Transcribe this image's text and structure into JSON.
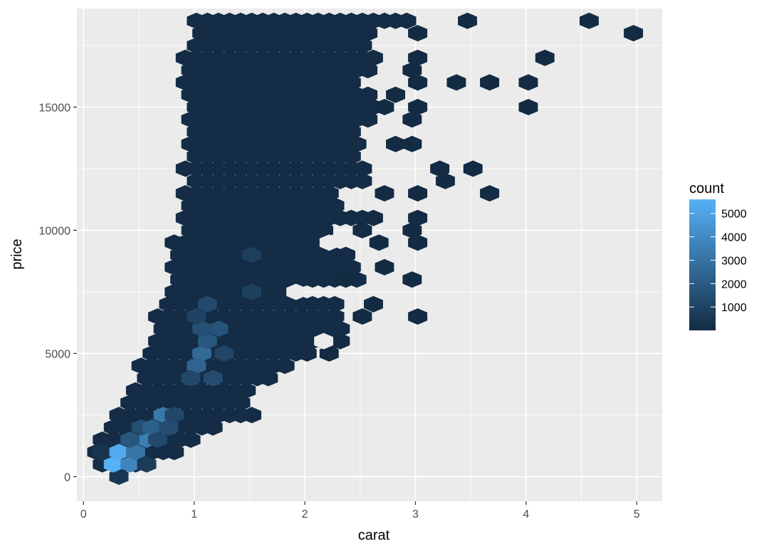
{
  "chart_data": {
    "type": "hexbin",
    "xlabel": "carat",
    "ylabel": "price",
    "xlim": [
      -0.06,
      5.23
    ],
    "ylim": [
      -1000,
      19000
    ],
    "x_ticks": [
      0,
      1,
      2,
      3,
      4,
      5
    ],
    "x_tick_labels": [
      "0",
      "1",
      "2",
      "3",
      "4",
      "5"
    ],
    "y_ticks": [
      0,
      5000,
      10000,
      15000
    ],
    "y_tick_labels": [
      "0",
      "5000",
      "10000",
      "15000"
    ],
    "grid": true,
    "legend": {
      "title": "count",
      "placement": "right",
      "min": 1,
      "max": 5600,
      "breaks": [
        1000,
        2000,
        3000,
        4000,
        5000
      ],
      "break_labels": [
        "1000",
        "2000",
        "3000",
        "4000",
        "5000"
      ]
    },
    "colors": {
      "low": "#132b43",
      "high": "#56b1f7",
      "panel": "#ebebeb",
      "grid_major": "#ffffff"
    },
    "bins": [
      {
        "x": 0.32,
        "y": 0,
        "count": 500
      },
      {
        "x": 0.17,
        "y": 1000,
        "count": 400
      },
      {
        "x": 0.27,
        "y": 500,
        "count": 5600
      },
      {
        "x": 0.32,
        "y": 1000,
        "count": 5300
      },
      {
        "x": 0.42,
        "y": 500,
        "count": 3800
      },
      {
        "x": 0.47,
        "y": 1000,
        "count": 3100
      },
      {
        "x": 0.57,
        "y": 1500,
        "count": 3500
      },
      {
        "x": 0.72,
        "y": 2500,
        "count": 3200
      },
      {
        "x": 0.57,
        "y": 500,
        "count": 700
      },
      {
        "x": 0.42,
        "y": 1500,
        "count": 1800
      },
      {
        "x": 0.52,
        "y": 2000,
        "count": 1500
      },
      {
        "x": 0.62,
        "y": 2000,
        "count": 2200
      },
      {
        "x": 0.67,
        "y": 1500,
        "count": 1300
      },
      {
        "x": 0.77,
        "y": 2000,
        "count": 1400
      },
      {
        "x": 0.82,
        "y": 2500,
        "count": 1200
      },
      {
        "x": 1.07,
        "y": 5000,
        "count": 2600
      },
      {
        "x": 1.02,
        "y": 4500,
        "count": 2400
      },
      {
        "x": 1.12,
        "y": 5500,
        "count": 1900
      },
      {
        "x": 1.22,
        "y": 6000,
        "count": 1700
      },
      {
        "x": 1.07,
        "y": 6000,
        "count": 1500
      },
      {
        "x": 1.12,
        "y": 7000,
        "count": 1300
      },
      {
        "x": 1.17,
        "y": 4000,
        "count": 1400
      },
      {
        "x": 0.97,
        "y": 4000,
        "count": 1200
      },
      {
        "x": 1.27,
        "y": 5000,
        "count": 1100
      },
      {
        "x": 1.52,
        "y": 7500,
        "count": 900
      },
      {
        "x": 1.52,
        "y": 9000,
        "count": 800
      },
      {
        "x": 1.02,
        "y": 6500,
        "count": 1000
      }
    ]
  }
}
